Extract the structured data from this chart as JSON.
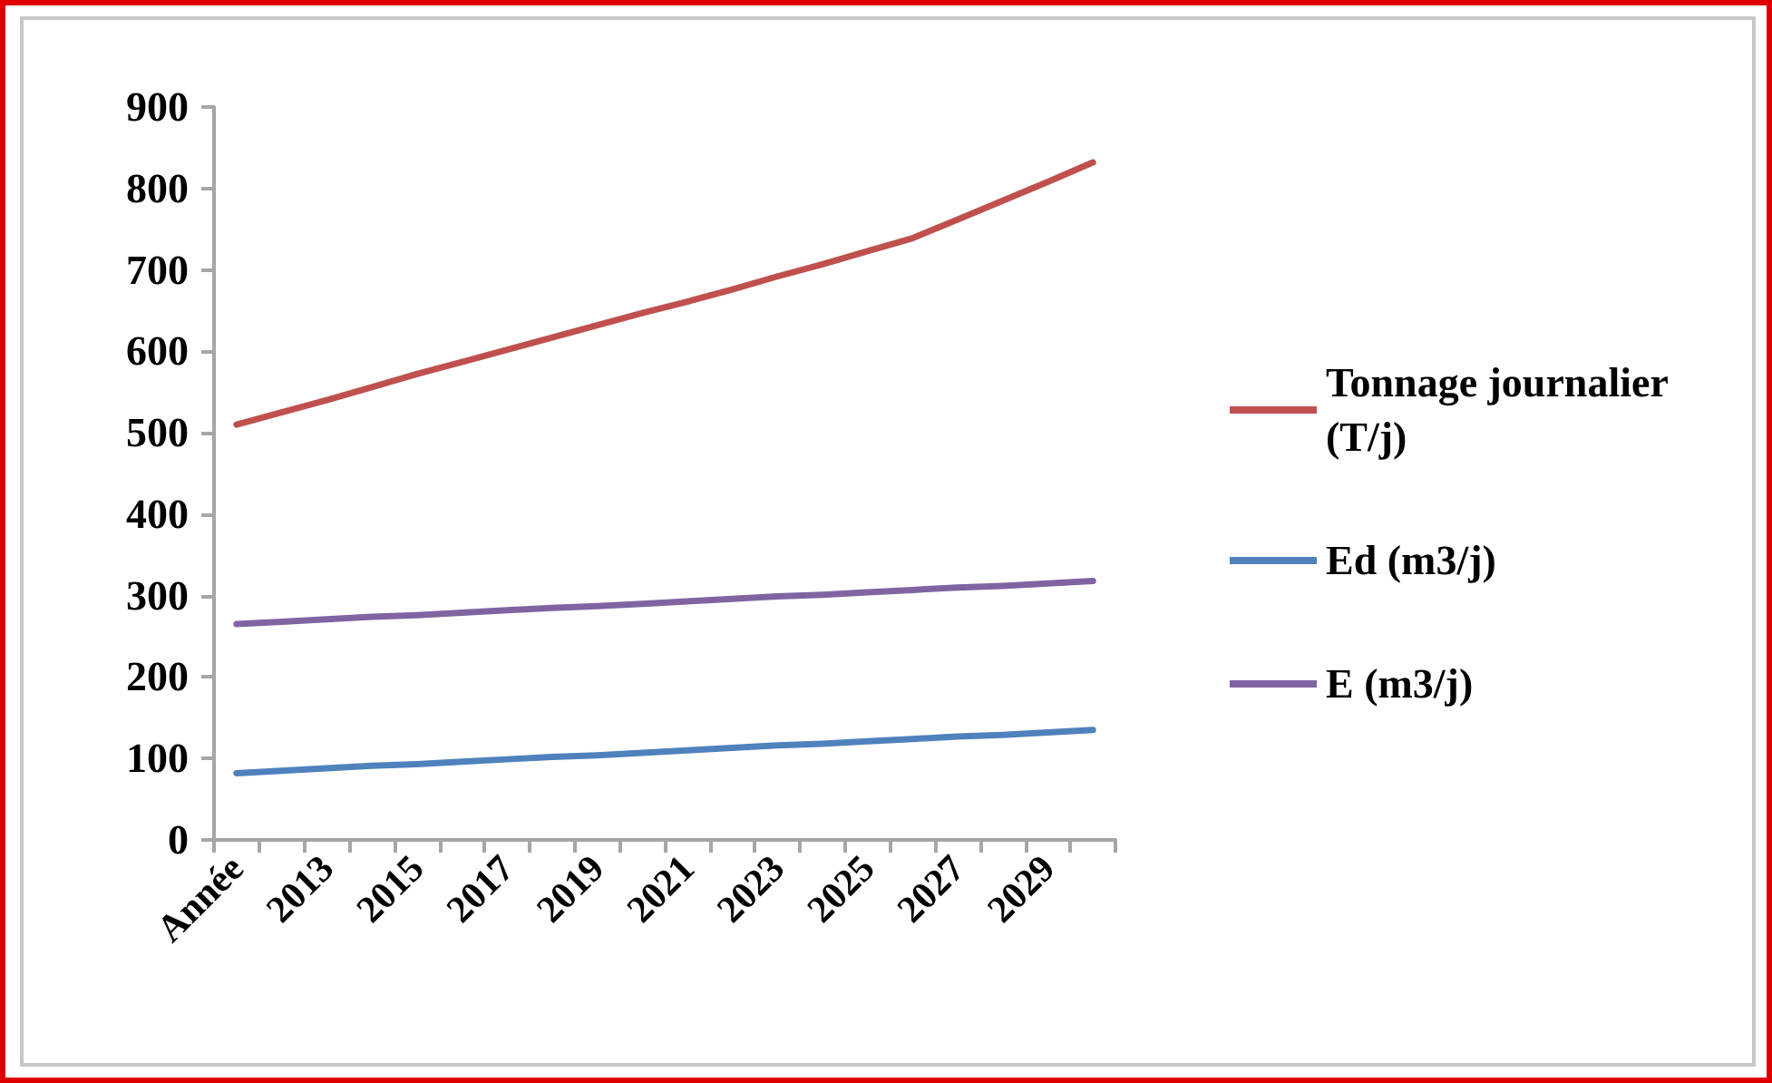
{
  "chart_data": {
    "type": "line",
    "categories": [
      "Année",
      null,
      "2013",
      null,
      "2015",
      null,
      "2017",
      null,
      "2019",
      null,
      "2021",
      null,
      "2023",
      null,
      "2025",
      null,
      "2027",
      null,
      "2029",
      null
    ],
    "series": [
      {
        "name": "Tonnage journalier (T/j)",
        "color": "#c0504d",
        "values": [
          510,
          525,
          540,
          556,
          572,
          587,
          602,
          617,
          632,
          647,
          661,
          676,
          692,
          707,
          723,
          739,
          762,
          785,
          808,
          832
        ]
      },
      {
        "name": "Ed (m3/j)",
        "color": "#4f81bd",
        "values": [
          82,
          85,
          88,
          91,
          93,
          96,
          99,
          102,
          104,
          107,
          110,
          113,
          116,
          118,
          121,
          124,
          127,
          129,
          132,
          135
        ]
      },
      {
        "name": "E (m3/j)",
        "color": "#8064a2",
        "values": [
          265,
          268,
          271,
          274,
          276,
          279,
          282,
          285,
          287,
          290,
          293,
          296,
          299,
          301,
          304,
          307,
          310,
          312,
          315,
          318
        ]
      }
    ],
    "ylim": [
      0,
      900
    ],
    "yticks": [
      0,
      100,
      200,
      300,
      400,
      500,
      600,
      700,
      800,
      900
    ],
    "grid": false,
    "legend": "right",
    "marker": "none",
    "line_style": "solid"
  }
}
